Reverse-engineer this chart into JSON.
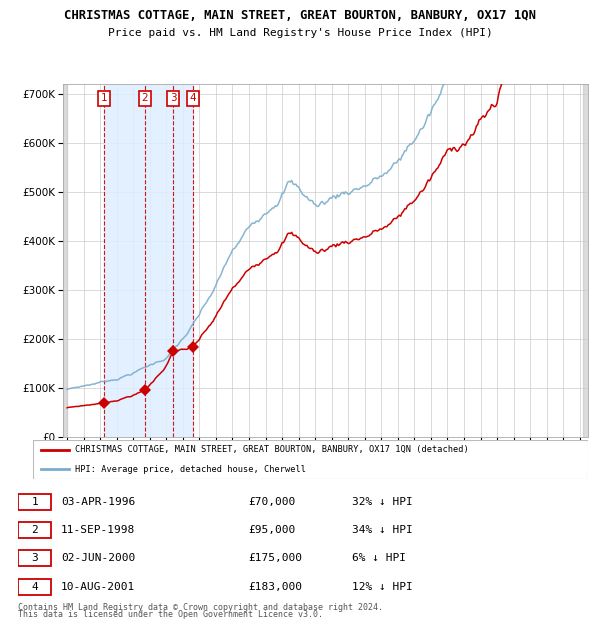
{
  "title": "CHRISTMAS COTTAGE, MAIN STREET, GREAT BOURTON, BANBURY, OX17 1QN",
  "subtitle": "Price paid vs. HM Land Registry's House Price Index (HPI)",
  "sale_date_nums": [
    1996.253,
    1998.692,
    2000.419,
    2001.609
  ],
  "sale_prices": [
    70000,
    95000,
    175000,
    183000
  ],
  "sale_labels": [
    "1",
    "2",
    "3",
    "4"
  ],
  "legend_property": "CHRISTMAS COTTAGE, MAIN STREET, GREAT BOURTON, BANBURY, OX17 1QN (detached)",
  "legend_hpi": "HPI: Average price, detached house, Cherwell",
  "footer": "Contains HM Land Registry data © Crown copyright and database right 2024.\nThis data is licensed under the Open Government Licence v3.0.",
  "property_color": "#cc0000",
  "hpi_color": "#7aadcc",
  "sale_region_color": "#ddeeff",
  "ylim": [
    0,
    720000
  ],
  "yticks": [
    0,
    100000,
    200000,
    300000,
    400000,
    500000,
    600000,
    700000
  ],
  "xmin": 1993.75,
  "xmax": 2025.5,
  "row_labels": [
    "1",
    "2",
    "3",
    "4"
  ],
  "row_dates": [
    "03-APR-1996",
    "11-SEP-1998",
    "02-JUN-2000",
    "10-AUG-2001"
  ],
  "row_prices": [
    "£70,000",
    "£95,000",
    "£175,000",
    "£183,000"
  ],
  "row_hpi": [
    "32% ↓ HPI",
    "34% ↓ HPI",
    "6% ↓ HPI",
    "12% ↓ HPI"
  ]
}
